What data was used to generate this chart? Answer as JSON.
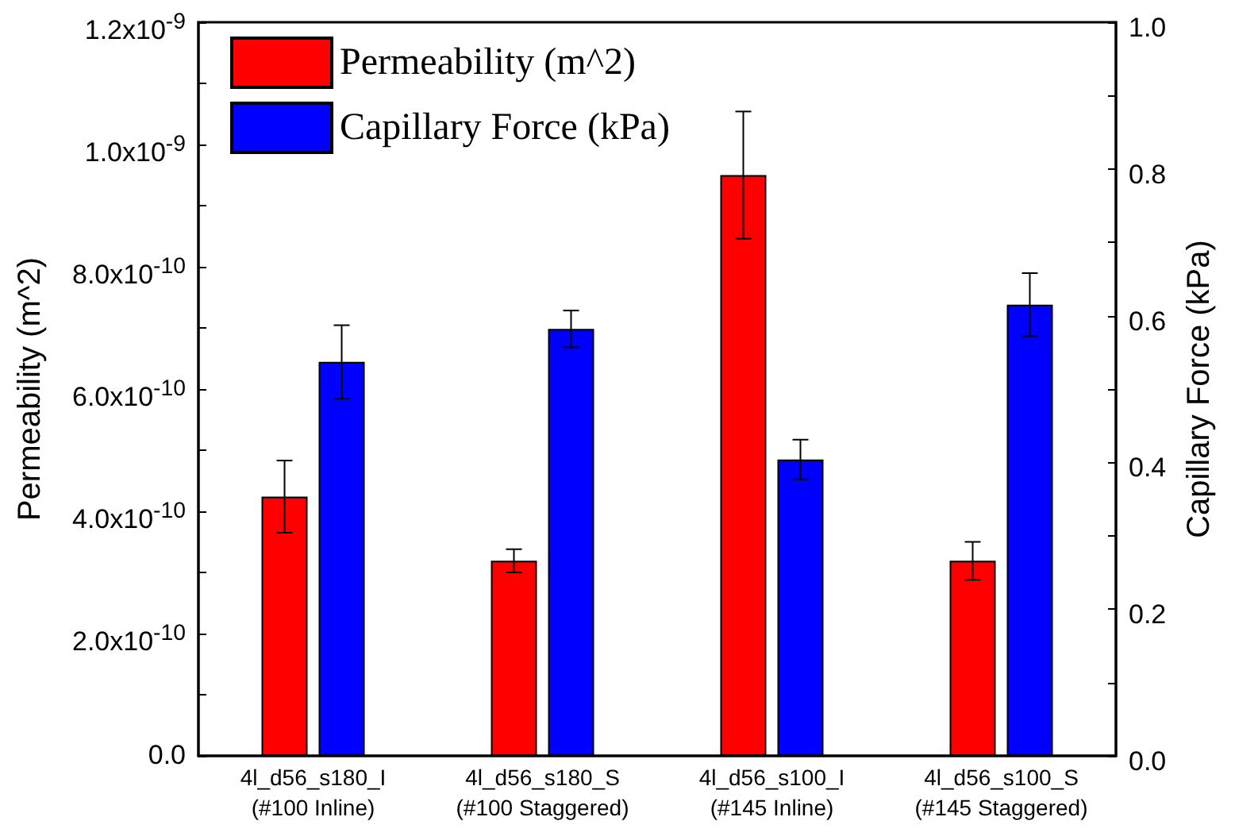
{
  "chart_data": {
    "type": "bar",
    "categories": [
      "4l_d56_s180_I\n(#100 Inline)",
      "4l_d56_s180_S\n(#100 Staggered)",
      "4l_d56_s100_I\n(#145 Inline)",
      "4l_d56_s100_S\n(#145 Staggered)"
    ],
    "series": [
      {
        "name": "Permeability (m^2)",
        "color": "#ff0000",
        "values": [
          4.24e-10,
          3.19e-10,
          9.5e-10,
          3.19e-10
        ],
        "errors": [
          5.9e-11,
          1.9e-11,
          1.04e-10,
          3.1e-11
        ]
      },
      {
        "name": "Capillary Force (kPa)",
        "color": "#0000ff",
        "axis": "y2",
        "values": [
          0.537,
          0.582,
          0.404,
          0.615
        ],
        "errors": [
          0.05,
          0.025,
          0.027,
          0.043
        ]
      }
    ],
    "ylabel": "Permeability (m^2)",
    "y2label": "Capillary Force (kPa)",
    "ylim": [
      0,
      1.2e-09
    ],
    "yticks": [
      {
        "value": 0,
        "label": "0.0"
      },
      {
        "value": 1e-10,
        "label": null
      },
      {
        "value": 2e-10,
        "label": "2.0x10$^{-10}$"
      },
      {
        "value": 3e-10,
        "label": null
      },
      {
        "value": 4e-10,
        "label": "4.0x10$^{-10}$"
      },
      {
        "value": 5e-10,
        "label": null
      },
      {
        "value": 6e-10,
        "label": "6.0x10$^{-10}$"
      },
      {
        "value": 7e-10,
        "label": null
      },
      {
        "value": 8e-10,
        "label": "8.0x10$^{-10}$"
      },
      {
        "value": 9e-10,
        "label": null
      },
      {
        "value": 1e-09,
        "label": "1.0x10$^{-9}$"
      },
      {
        "value": 1.1e-09,
        "label": null
      },
      {
        "value": 1.2e-09,
        "label": "1.2x10$^{-9}$"
      }
    ],
    "y2lim": [
      0,
      1
    ],
    "y2ticks": [
      {
        "value": 0,
        "label": "0.0"
      },
      {
        "value": 0.1,
        "label": null
      },
      {
        "value": 0.2,
        "label": "0.2"
      },
      {
        "value": 0.3,
        "label": null
      },
      {
        "value": 0.4,
        "label": "0.4"
      },
      {
        "value": 0.5,
        "label": null
      },
      {
        "value": 0.6,
        "label": "0.6"
      },
      {
        "value": 0.7,
        "label": null
      },
      {
        "value": 0.8,
        "label": "0.8"
      },
      {
        "value": 0.9,
        "label": null
      },
      {
        "value": 1,
        "label": "1.0"
      }
    ],
    "legend": "top left",
    "grid": false
  }
}
